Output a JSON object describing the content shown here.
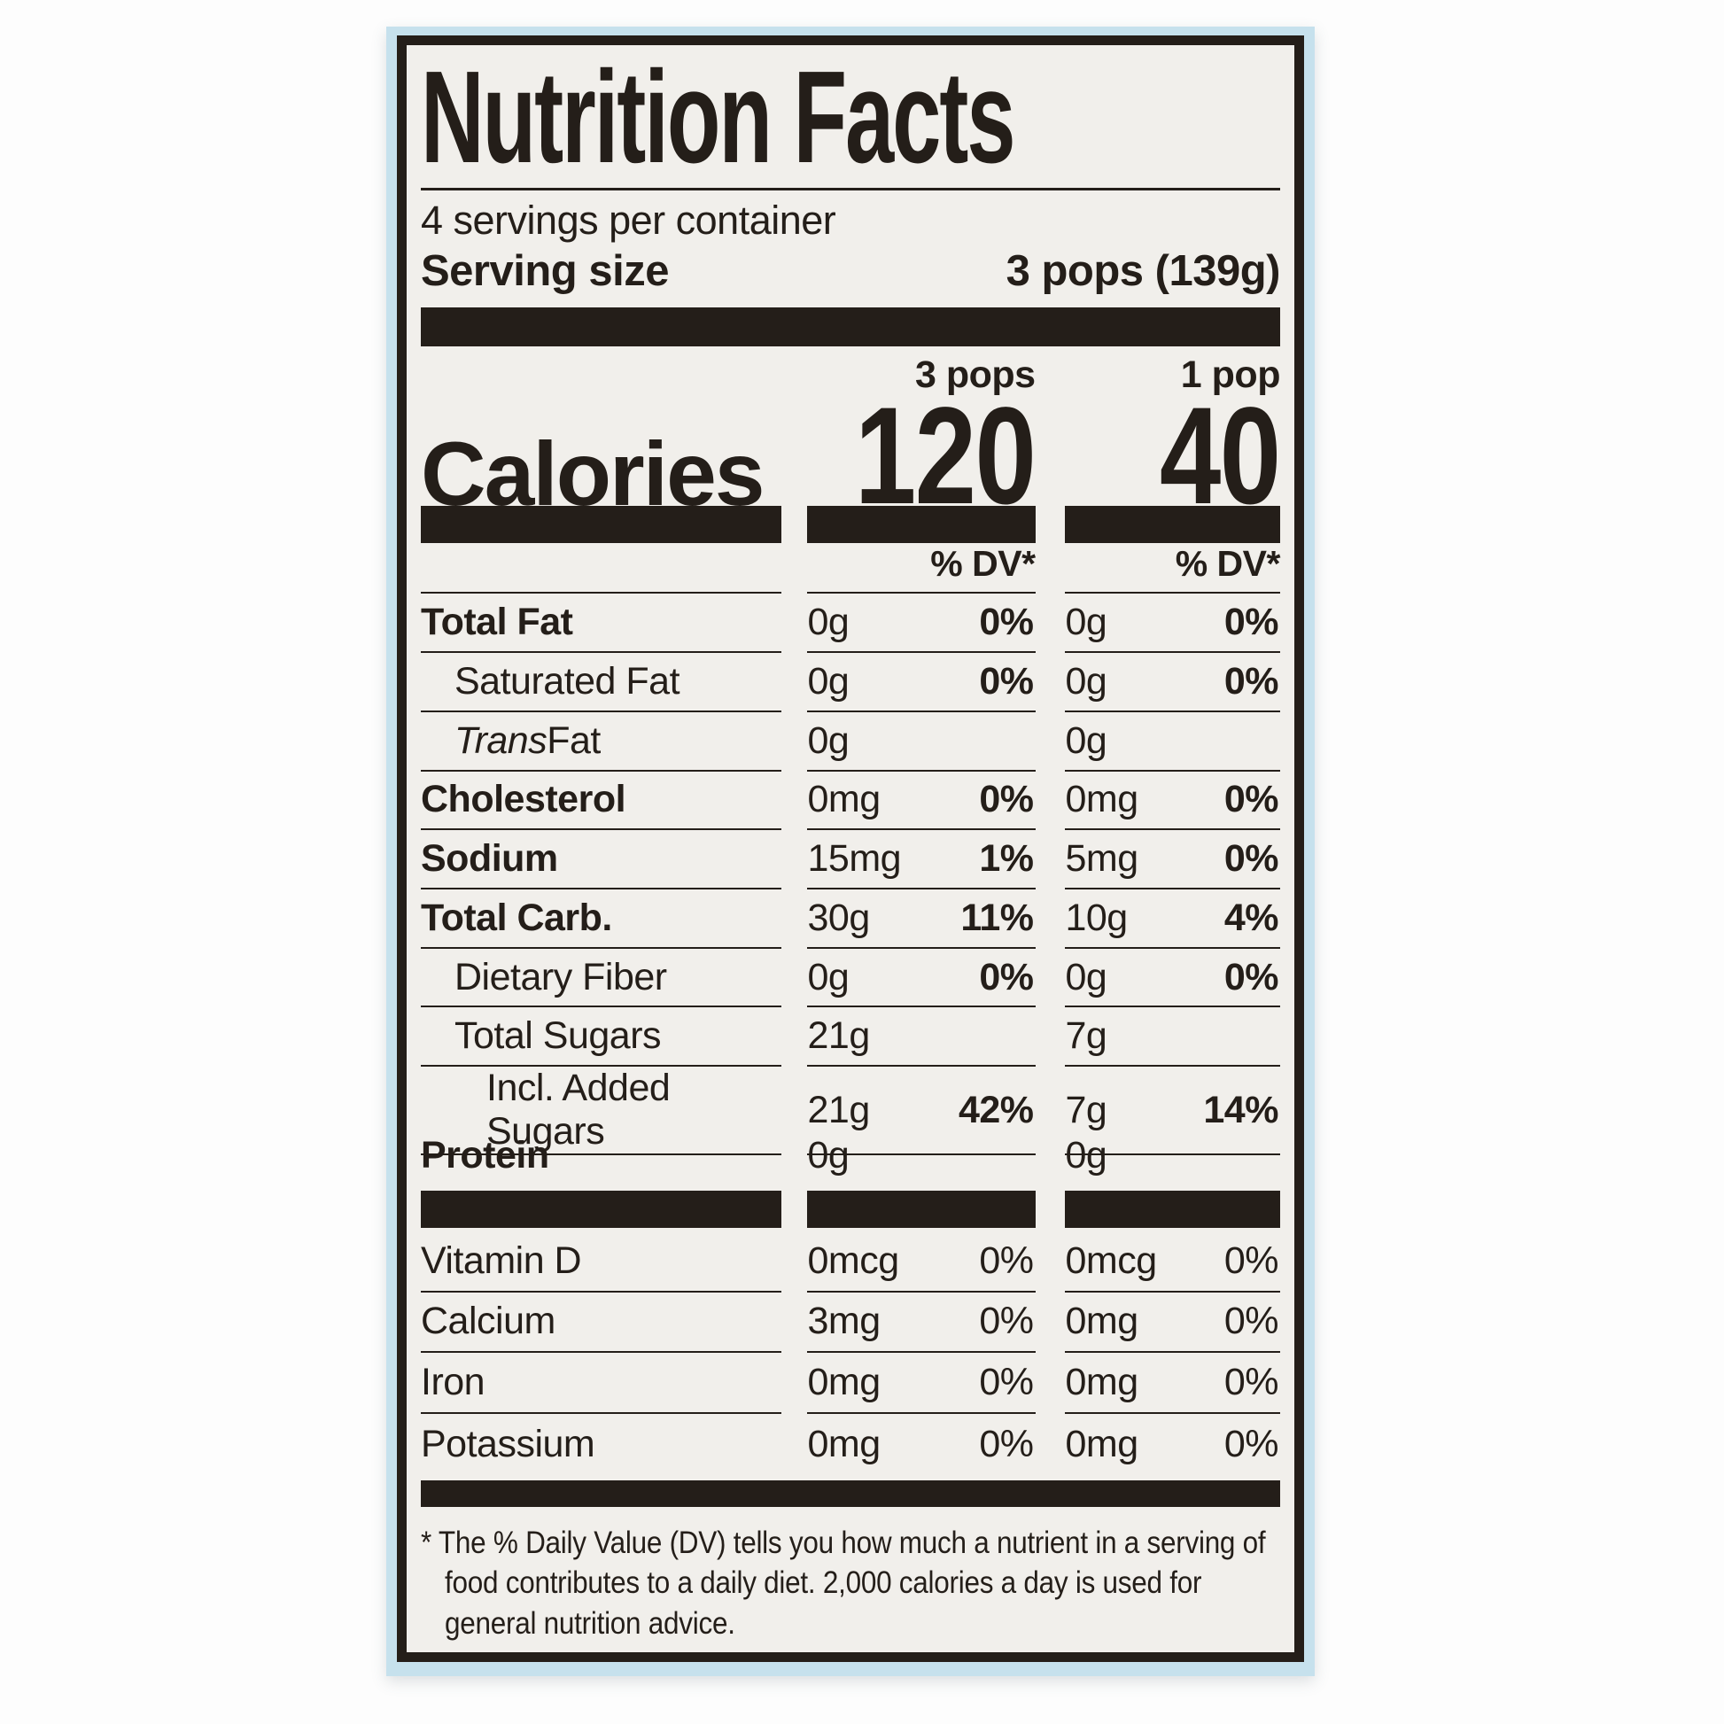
{
  "label": {
    "title": "Nutrition Facts",
    "servings_per_container": "4 servings per container",
    "serving_size": {
      "label": "Serving size",
      "value": "3 pops (139g)"
    },
    "columns": [
      {
        "header": "3 pops"
      },
      {
        "header": "1 pop"
      }
    ],
    "calories": {
      "label": "Calories",
      "col1": "120",
      "col2": "40"
    },
    "dv_header": "% DV*",
    "rows": [
      {
        "name": "Total Fat",
        "col1_amount": "0g",
        "col1_dv": "0%",
        "col2_amount": "0g",
        "col2_dv": "0%"
      },
      {
        "name": "Saturated Fat",
        "col1_amount": "0g",
        "col1_dv": "0%",
        "col2_amount": "0g",
        "col2_dv": "0%"
      },
      {
        "name_italic": "Trans",
        "name_rest": " Fat",
        "col1_amount": "0g",
        "col1_dv": "",
        "col2_amount": "0g",
        "col2_dv": ""
      },
      {
        "name": "Cholesterol",
        "col1_amount": "0mg",
        "col1_dv": "0%",
        "col2_amount": "0mg",
        "col2_dv": "0%"
      },
      {
        "name": "Sodium",
        "col1_amount": "15mg",
        "col1_dv": "1%",
        "col2_amount": "5mg",
        "col2_dv": "0%"
      },
      {
        "name": "Total Carb.",
        "col1_amount": "30g",
        "col1_dv": "11%",
        "col2_amount": "10g",
        "col2_dv": "4%"
      },
      {
        "name": "Dietary Fiber",
        "col1_amount": "0g",
        "col1_dv": "0%",
        "col2_amount": "0g",
        "col2_dv": "0%"
      },
      {
        "name": "Total Sugars",
        "col1_amount": "21g",
        "col1_dv": "",
        "col2_amount": "7g",
        "col2_dv": ""
      },
      {
        "name": "Incl. Added Sugars",
        "col1_amount": "21g",
        "col1_dv": "42%",
        "col2_amount": "7g",
        "col2_dv": "14%"
      },
      {
        "name": "Protein",
        "col1_amount": "0g",
        "col1_dv": "",
        "col2_amount": "0g",
        "col2_dv": ""
      }
    ],
    "micronutrients": [
      {
        "name": "Vitamin D",
        "col1_amount": "0mcg",
        "col1_dv": "0%",
        "col2_amount": "0mcg",
        "col2_dv": "0%"
      },
      {
        "name": "Calcium",
        "col1_amount": "3mg",
        "col1_dv": "0%",
        "col2_amount": "0mg",
        "col2_dv": "0%"
      },
      {
        "name": "Iron",
        "col1_amount": "0mg",
        "col1_dv": "0%",
        "col2_amount": "0mg",
        "col2_dv": "0%"
      },
      {
        "name": "Potassium",
        "col1_amount": "0mg",
        "col1_dv": "0%",
        "col2_amount": "0mg",
        "col2_dv": "0%"
      }
    ],
    "footnote": {
      "marker": "*",
      "text": "The % Daily Value (DV) tells you how much a nutrient in a serving of food contributes to a daily diet. 2,000 calories a day is used for general nutrition advice."
    },
    "colors": {
      "frame_blue": "#c6e1ed",
      "label_bg": "#f1efeb",
      "ink": "#241e19"
    }
  }
}
